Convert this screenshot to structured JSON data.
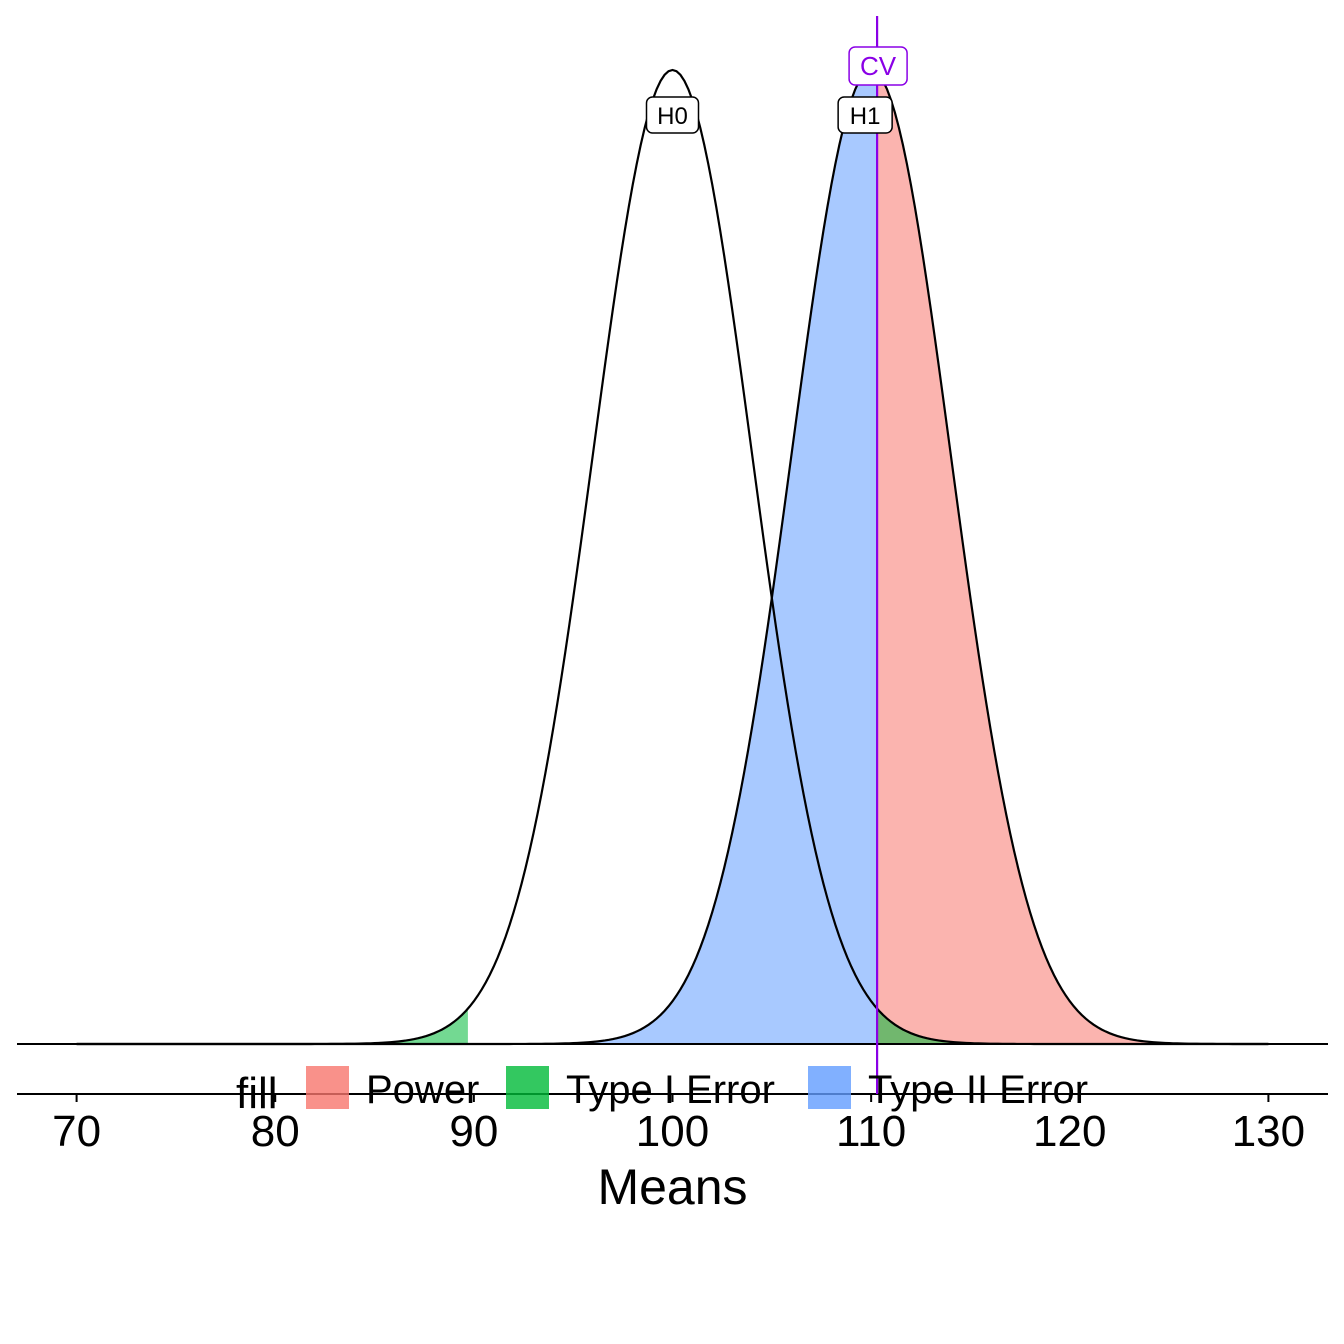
{
  "chart_data": {
    "type": "area",
    "xlabel": "Means",
    "x_ticks": [
      70,
      80,
      90,
      100,
      110,
      120,
      130
    ],
    "xlim": [
      67,
      133
    ],
    "x_range_drawn": [
      70,
      130
    ],
    "distributions": [
      {
        "label": "H0",
        "mean": 100,
        "sd": 4
      },
      {
        "label": "H1",
        "mean": 110,
        "sd": 4
      }
    ],
    "critical_value": 110.3,
    "critical_label": "CV",
    "type1_cutoff": 89.7,
    "legend": {
      "title": "fill",
      "position": "bottom",
      "items": [
        {
          "label": "Power",
          "color": "#F8766D"
        },
        {
          "label": "Type I Error",
          "color": "#00BA38"
        },
        {
          "label": "Type II Error",
          "color": "#619CFF"
        }
      ]
    },
    "regions": [
      {
        "name": "Power",
        "curve": "H1",
        "from": 110.3,
        "to": 130
      },
      {
        "name": "Type II Error",
        "curve": "H1",
        "from": 70,
        "to": 110.3
      },
      {
        "name": "Type I Error",
        "curve": "H0",
        "from": 70,
        "to": 89.7
      },
      {
        "name": "Type I Error",
        "curve": "H0",
        "from": 110.3,
        "to": 130
      }
    ],
    "colors": {
      "cv_line": "#8A00E6",
      "curve_stroke": "#000000",
      "fill_alpha": 0.55
    },
    "grid": false
  }
}
